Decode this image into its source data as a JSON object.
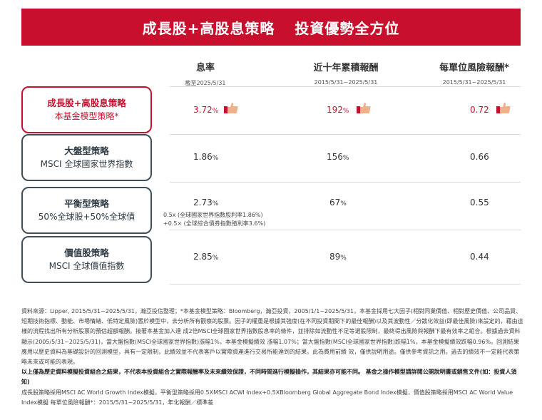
{
  "banner": {
    "left": "成長股+高股息策略",
    "right": "投資優勢全方位"
  },
  "columns": [
    {
      "title": "息率",
      "sub": "截至2025/5/31"
    },
    {
      "title": "近十年累積報酬",
      "sub": "2015/5/31~2025/5/31"
    },
    {
      "title": "每單位風險報酬*",
      "sub": "2015/5/31~2025/5/31"
    }
  ],
  "rows": [
    {
      "line1": "成長股+高股息策略",
      "line2": "本基金模型策略*",
      "yield": "3.72",
      "yield_unit": "%",
      "ret": "192",
      "ret_unit": "%",
      "risk": "0.72",
      "risk_unit": "",
      "highlight": true
    },
    {
      "line1": "大盤型策略",
      "line2": "MSCI 全球國家世界指數",
      "yield": "1.86",
      "yield_unit": "%",
      "ret": "156",
      "ret_unit": "%",
      "risk": "0.66",
      "risk_unit": ""
    },
    {
      "line1": "平衡型策略",
      "line2": "50%全球股+50%全球債",
      "yield": "2.73",
      "yield_unit": "%",
      "ret": "67",
      "ret_unit": "%",
      "risk": "0.55",
      "risk_unit": "",
      "note1": "0.5x (全球國家世界指數股利率1.86%)",
      "note2": "+0.5× (全球綜合債券指數殖利率3.6%)"
    },
    {
      "line1": "價值股策略",
      "line2": "MSCI 全球價值指數",
      "yield": "2.85",
      "yield_unit": "%",
      "ret": "89",
      "ret_unit": "%",
      "risk": "0.44",
      "risk_unit": ""
    }
  ],
  "footnote": {
    "p1": "資料來源：Lipper, 2015/5/31~2025/5/31，瀚亞投信整理；*本基金模型策略：Bloomberg，瀚亞投資，2005/1/1~2025/5/31，本基金採用七大因子(相對同業價值、相對歷史價值、公司品質、短期技術指標、動能、市場情緒、低特定風險)置於模型中，去分析所有觀察的股票。因子的權重是根據其強度(在不同投資期間下的最佳報酬)以及其波動性／分散化效益(即最佳風險)來設定的，藉由這樣的流程找出所有分析股票的預估超額報酬。接著本基金加入達 成2倍MSCI全球國家世界指數股息率的條件，並排除如流動性不足等選股限制，最終得出風險與報酬下最有效率之組合。根據過去資料顯示(2005/5/31~2025/5/31)，當大盤指數(MSCI全球國家世界指數)漲幅1%，本基金模擬績效 漲幅1.07%；當大盤指數(MSCI全球國家世界指數)跌幅1%，本基金模擬績效跌幅0.96%。回測結果應用以歷史資料為基礎設計的回測模型，具有一定限制，此績效並不代表客戶以實際資產進行交易所能達到的結果。此為費用前績 效，僅供說明用途。僅供參考資訊之用。過去的績效不一定能代表策略未來或可能的表現。",
    "p2": "以上僅為歷史資料模擬投資組合之結果，不代表本投資組合之實際報酬率及未來績效保證，不同時間進行模擬操作，其結果亦可能不同。 基金之操作模型請詳閱公開說明書或銷售文件(如：投資人須知)",
    "p3": "成長股策略採用MSCI AC World Growth Index模擬，平衡型策略採用0.5XMSCI ACWI Index+0.5XBloomberg Global Aggregate Bond Index模擬，價值股策略採用MSCI AC World Value Index模擬 每單位風險報酬*：2015/5/31~2025/5/31，年化報酬／標準差"
  },
  "colors": {
    "accent": "#c8102e",
    "box_border": "#3d4f5c",
    "thumb": "#f0b08a",
    "cuff": "#c8102e"
  },
  "icons": [
    "thumbs-up-icon"
  ]
}
